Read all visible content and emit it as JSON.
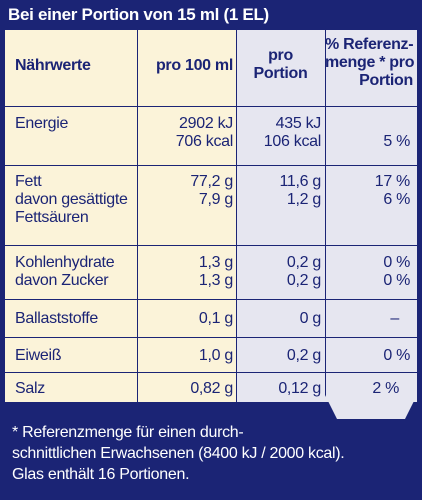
{
  "header": {
    "title": "Bei einer Portion von 15 ml (1 EL)"
  },
  "columns": {
    "label": "Nährwerte",
    "per100": "pro 100 ml",
    "portion_l1": "pro",
    "portion_l2": "Portion",
    "ref_l1": "% Referenz-",
    "ref_l2": "menge * pro",
    "ref_l3": "Portion"
  },
  "rows": {
    "energie": {
      "label": "Energie",
      "p100_kj": "2902 kJ",
      "p100_kcal": "706 kcal",
      "por_kj": "435 kJ",
      "por_kcal": "106 kcal",
      "ref": "5 %"
    },
    "fett": {
      "label": "Fett",
      "p100": "77,2 g",
      "por": "11,6 g",
      "ref": "17 %"
    },
    "gesaettigt": {
      "label_l1": "davon gesättigte",
      "label_l2": "Fettsäuren",
      "p100": "7,9 g",
      "por": "1,2 g",
      "ref": "6 %"
    },
    "kohlenhydrate": {
      "label": "Kohlenhydrate",
      "p100": "1,3 g",
      "por": "0,2 g",
      "ref": "0 %"
    },
    "zucker": {
      "label": "davon Zucker",
      "p100": "1,3 g",
      "por": "0,2 g",
      "ref": "0 %"
    },
    "ballaststoffe": {
      "label": "Ballaststoffe",
      "p100": "0,1 g",
      "por": "0 g",
      "ref": "–"
    },
    "eiweiss": {
      "label": "Eiweiß",
      "p100": "1,0 g",
      "por": "0,2 g",
      "ref": "0 %"
    },
    "salz": {
      "label": "Salz",
      "p100": "0,82 g",
      "por": "0,12 g",
      "ref": "2 %"
    }
  },
  "footnote": {
    "line1": "* Referenzmenge für einen durch-",
    "line2": "schnittlichen Erwachsenen (8400 kJ / 2000 kcal).",
    "line3": "Glas enthält 16 Portionen."
  },
  "colors": {
    "navy": "#1b2475",
    "cream": "#fbf3d9",
    "lavender": "#e6e6f0"
  }
}
